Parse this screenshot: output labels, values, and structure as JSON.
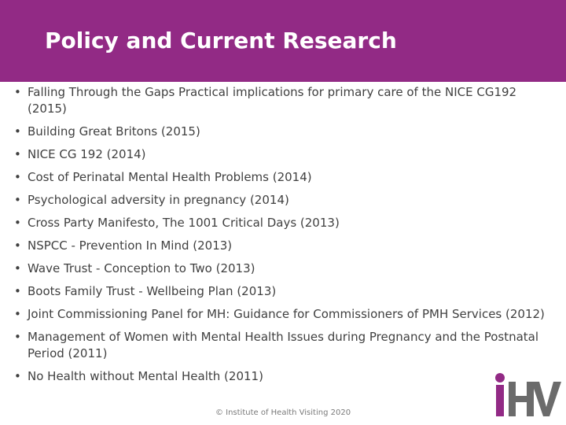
{
  "slide": {
    "title": "Policy and Current Research",
    "bullets": [
      "Falling Through the Gaps Practical implications for primary care of the NICE CG192 (2015)",
      "Building Great Britons (2015)",
      "NICE CG 192 (2014)",
      "Cost of Perinatal Mental Health Problems (2014)",
      "Psychological adversity in pregnancy (2014)",
      "Cross Party Manifesto, The 1001 Critical Days (2013)",
      "NSPCC - Prevention In Mind (2013)",
      "Wave Trust - Conception to Two (2013)",
      "Boots Family Trust - Wellbeing Plan (2013)",
      "Joint Commissioning Panel for MH: Guidance for Commissioners of PMH Services (2012)",
      "Management of Women with Mental Health Issues during Pregnancy and the Postnatal Period (2011)",
      "No Health without Mental Health (2011)"
    ],
    "footer": "© Institute of Health Visiting 2020",
    "logo_text": "iHV"
  },
  "colors": {
    "header_band": "#922a85",
    "logo_i": "#922a85",
    "logo_hv": "#6b6b6b"
  }
}
